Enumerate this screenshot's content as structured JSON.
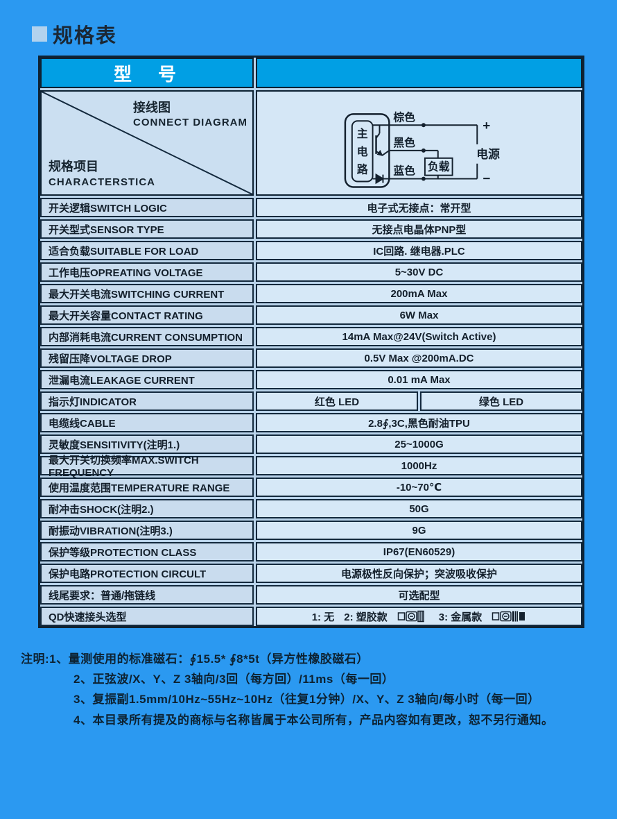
{
  "page": {
    "title": "规格表"
  },
  "table": {
    "header": {
      "model_label": "型　号",
      "model_value": ""
    },
    "corner": {
      "top_zh": "接线图",
      "top_en": "CONNECT DIAGRAM",
      "bottom_zh": "规格项目",
      "bottom_en": "CHARACTERSTICA"
    },
    "diagram": {
      "circuit_chars": [
        "主",
        "电",
        "路"
      ],
      "wire_labels": [
        "棕色",
        "黑色",
        "蓝色"
      ],
      "load_label": "负载",
      "power_label": "电源",
      "plus": "+",
      "minus": "−"
    },
    "rows": [
      {
        "label": "开关逻辑SWITCH LOGIC",
        "value": "电子式无接点：常开型"
      },
      {
        "label": "开关型式SENSOR TYPE",
        "value": "无接点电晶体PNP型"
      },
      {
        "label": "适合负载SUITABLE FOR LOAD",
        "value": "IC回路. 继电器.PLC"
      },
      {
        "label": "工作电压OPREATING VOLTAGE",
        "value": "5~30V DC"
      },
      {
        "label": "最大开关电流SWITCHING CURRENT",
        "value": "200mA Max"
      },
      {
        "label": "最大开关容量CONTACT RATING",
        "value": "6W Max"
      },
      {
        "label": "内部消耗电流CURRENT CONSUMPTION",
        "value": "14mA Max@24V(Switch Active)"
      },
      {
        "label": "残留压降VOLTAGE DROP",
        "value": "0.5V Max @200mA.DC"
      },
      {
        "label": "泄漏电流LEAKAGE CURRENT",
        "value": "0.01 mA Max"
      },
      {
        "label": "指示灯INDICATOR",
        "values": [
          "红色 LED",
          "绿色 LED"
        ]
      },
      {
        "label": "电缆线CABLE",
        "value": "2.8∮,3C,黑色耐油TPU"
      },
      {
        "label": "灵敏度SENSITIVITY(注明1.)",
        "value": "25~1000G"
      },
      {
        "label": "最大开关切换频率MAX.SWITCH FREQUENCY",
        "value": "1000Hz"
      },
      {
        "label": "使用温度范围TEMPERATURE RANGE",
        "value": "-10~70℃"
      },
      {
        "label": "耐冲击SHOCK(注明2.)",
        "value": "50G"
      },
      {
        "label": "耐振动VIBRATION(注明3.)",
        "value": "9G"
      },
      {
        "label": "保护等级PROTECTION CLASS",
        "value": "IP67(EN60529)"
      },
      {
        "label": "保护电路PROTECTION CIRCULT",
        "value": "电源极性反向保护；突波吸收保护"
      },
      {
        "label": "线尾要求：普通/拖链线",
        "value": "可选配型"
      },
      {
        "label": "QD快速接头选型",
        "qd": [
          {
            "text": "1: 无"
          },
          {
            "text": "2: 塑胶款",
            "icon": "plastic-connector"
          },
          {
            "text": "3: 金属款",
            "icon": "metal-connector"
          }
        ]
      }
    ]
  },
  "notes": {
    "line1": "注明:1、量测使用的标准磁石：∮15.5* ∮8*5t（异方性橡胶磁石）",
    "line2": "2、正弦波/X、Y、Z 3轴向/3回（每方回）/11ms（每一回）",
    "line3": "3、复振副1.5mm/10Hz~55Hz~10Hz（往复1分钟）/X、Y、Z 3轴向/每小时（每一回）",
    "line4": "4、本目录所有提及的商标与名称皆属于本公司所有，产品内容如有更改，恕不另行通知。"
  }
}
